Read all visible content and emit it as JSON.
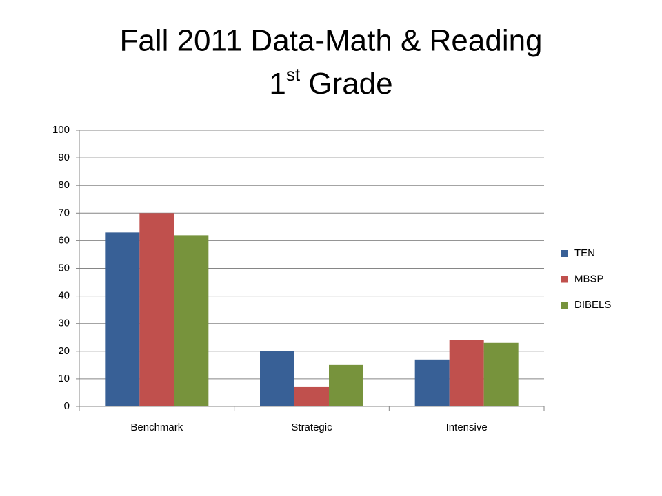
{
  "chart_data": {
    "type": "bar",
    "title": [
      "Fall 2011 Data-Math & Reading",
      [
        "1",
        "st",
        " Grade"
      ]
    ],
    "categories": [
      "Benchmark",
      "Strategic",
      "Intensive"
    ],
    "series": [
      {
        "name": "TEN",
        "color": "#386096",
        "values": [
          63,
          20,
          17
        ]
      },
      {
        "name": "MBSP",
        "color": "#c0504d",
        "values": [
          70,
          7,
          24
        ]
      },
      {
        "name": "DIBELS",
        "color": "#77933c",
        "values": [
          62,
          15,
          23
        ]
      }
    ],
    "ylim": [
      0,
      100
    ],
    "yticks": [
      0,
      10,
      20,
      30,
      40,
      50,
      60,
      70,
      80,
      90,
      100
    ],
    "grid": true,
    "legend": "right"
  }
}
